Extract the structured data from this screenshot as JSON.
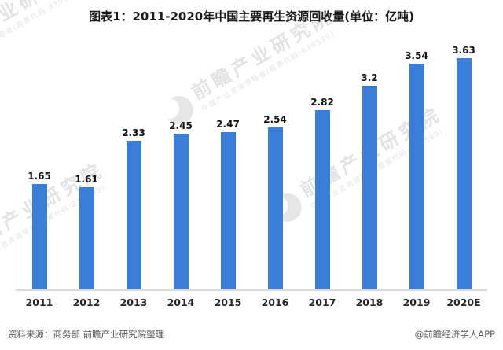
{
  "title": "图表1：2011-2020年中国主要再生资源回收量(单位：亿吨)",
  "chart_data": {
    "type": "bar",
    "categories": [
      "2011",
      "2012",
      "2013",
      "2014",
      "2015",
      "2016",
      "2017",
      "2018",
      "2019",
      "2020E"
    ],
    "values": [
      1.65,
      1.61,
      2.33,
      2.45,
      2.47,
      2.54,
      2.82,
      3.2,
      3.54,
      3.63
    ],
    "title": "图表1：2011-2020年中国主要再生资源回收量(单位：亿吨)",
    "xlabel": "",
    "ylabel": "",
    "ylim": [
      0,
      4
    ],
    "grid": false,
    "legend": false,
    "bar_color": "#3b7ed8",
    "axis_line_color": "#d9d9d9"
  },
  "watermark": {
    "text": "前瞻产业研究院",
    "subtext": "中国产业咨询领导者(股票代码:839599)"
  },
  "footer": {
    "source": "资料来源：商务部 前瞻产业研究院整理",
    "brand": "@前瞻经济学人APP"
  }
}
